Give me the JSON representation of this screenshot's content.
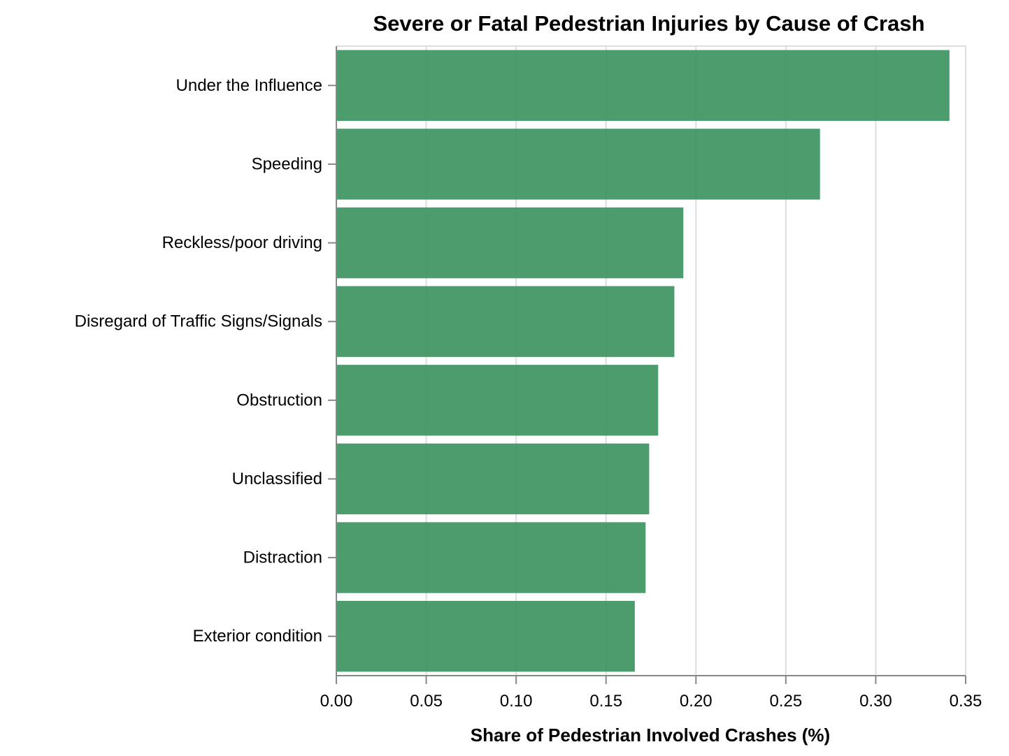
{
  "chart_data": {
    "type": "bar",
    "orientation": "horizontal",
    "title": "Severe or Fatal Pedestrian Injuries by Cause of Crash",
    "xlabel": "Share of Pedestrian Involved Crashes (%)",
    "ylabel": "",
    "xlim": [
      0,
      0.35
    ],
    "x_ticks": [
      "0.00",
      "0.05",
      "0.10",
      "0.15",
      "0.20",
      "0.25",
      "0.30",
      "0.35"
    ],
    "x_tick_values": [
      0,
      0.05,
      0.1,
      0.15,
      0.2,
      0.25,
      0.3,
      0.35
    ],
    "grid": true,
    "bar_color": "#3d9462",
    "categories": [
      "Under the Influence",
      "Speeding",
      "Reckless/poor driving",
      "Disregard of Traffic Signs/Signals",
      "Obstruction",
      "Unclassified",
      "Distraction",
      "Exterior condition"
    ],
    "values": [
      0.341,
      0.269,
      0.193,
      0.188,
      0.179,
      0.174,
      0.172,
      0.166
    ]
  }
}
